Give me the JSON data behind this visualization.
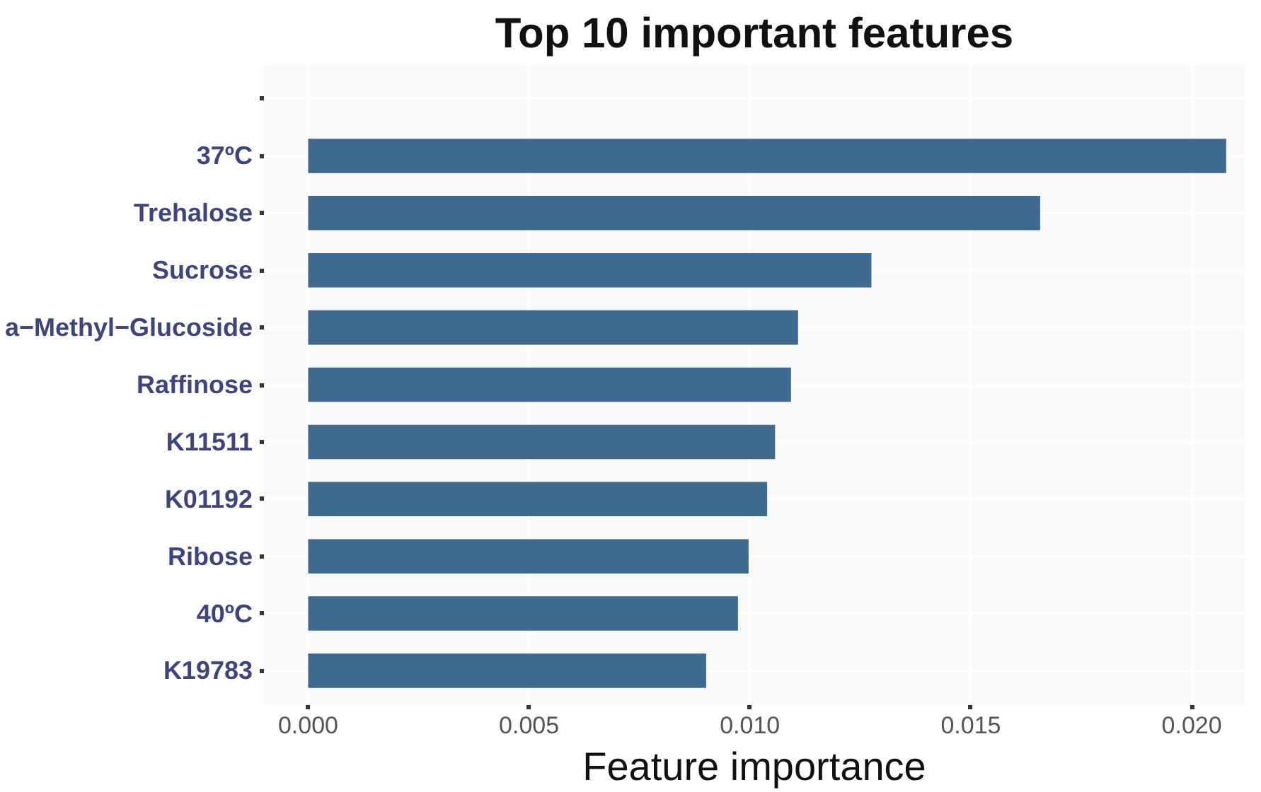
{
  "chart_data": {
    "type": "bar",
    "orientation": "horizontal",
    "title": "Top 10 important features",
    "xlabel": "Feature importance",
    "categories": [
      null,
      "37ºC",
      "Trehalose",
      "Sucrose",
      "a−Methyl−Glucoside",
      "Raffinose",
      "K11511",
      "K01192",
      "Ribose",
      "40ºC",
      "K19783"
    ],
    "values": [
      null,
      0.02078,
      0.01657,
      0.01275,
      0.01109,
      0.01093,
      0.01057,
      0.01039,
      0.00997,
      0.00973,
      0.00901
    ],
    "color": "#3d6a8e",
    "xlim": [
      -0.001,
      0.0212
    ],
    "xticks": [
      {
        "value": 0,
        "label": "0.000"
      },
      {
        "value": 0.005,
        "label": "0.005"
      },
      {
        "value": 0.01,
        "label": "0.010"
      },
      {
        "value": 0.015,
        "label": "0.015"
      },
      {
        "value": 0.02,
        "label": "0.020"
      }
    ],
    "grid": true
  }
}
